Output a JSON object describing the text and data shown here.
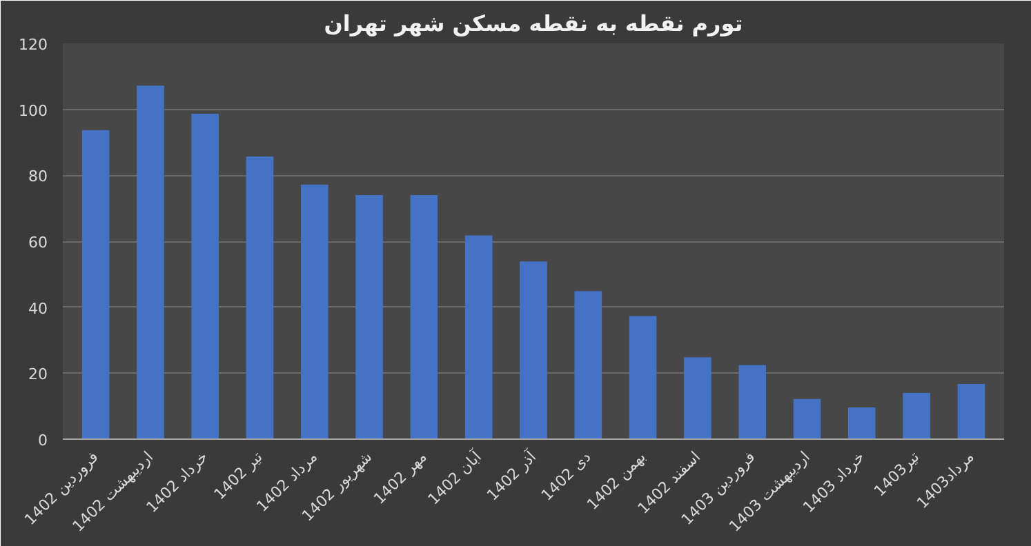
{
  "chart_data": {
    "type": "bar",
    "title": "تورم نقطه به نقطه مسکن شهر تهران",
    "categories": [
      "فروردین 1402",
      "اردیبهشت 1402",
      "خرداد 1402",
      "تیر 1402",
      "مرداد 1402",
      "شهریور 1402",
      "مهر 1402",
      "آبان 1402",
      "آذر 1402",
      "دی 1402",
      "بهمن 1402",
      "اسفند 1402",
      "فروردین 1403",
      "اردیبهشت 1403",
      "خرداد 1403",
      "تیر1403",
      "مرداد1403"
    ],
    "values": [
      93.7,
      107.2,
      98.7,
      85.7,
      77.2,
      74.0,
      74.0,
      61.8,
      53.9,
      44.9,
      37.3,
      24.8,
      22.5,
      12.2,
      9.6,
      14.0,
      16.7
    ],
    "color": "#4472c4",
    "ylim": [
      0,
      120
    ],
    "yticks": [
      0,
      20,
      40,
      60,
      80,
      100,
      120
    ],
    "grid": "y"
  }
}
